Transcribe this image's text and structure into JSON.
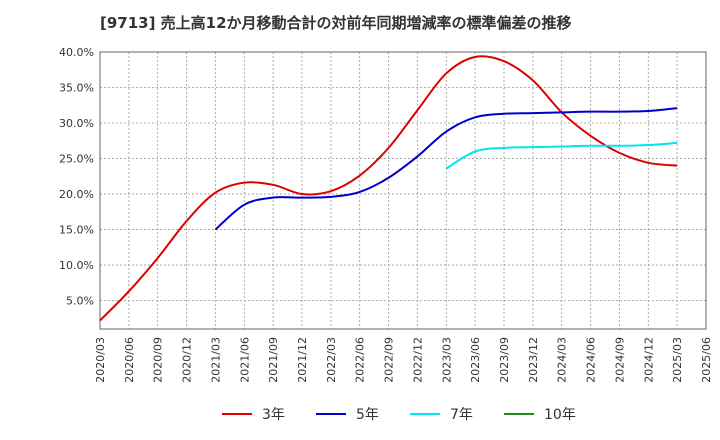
{
  "chart_data": {
    "type": "line",
    "title": "[9713]  売上高12か月移動合計の対前年同期増減率の標準偏差の推移",
    "xlabel": "",
    "ylabel": "",
    "x_ticks": [
      "2020/03",
      "2020/06",
      "2020/09",
      "2020/12",
      "2021/03",
      "2021/06",
      "2021/09",
      "2021/12",
      "2022/03",
      "2022/06",
      "2022/09",
      "2022/12",
      "2023/03",
      "2023/06",
      "2023/09",
      "2023/12",
      "2024/03",
      "2024/06",
      "2024/09",
      "2024/12",
      "2025/03",
      "2025/06"
    ],
    "y_ticks": [
      "5.0%",
      "10.0%",
      "15.0%",
      "20.0%",
      "25.0%",
      "30.0%",
      "35.0%",
      "40.0%"
    ],
    "ylim": [
      1.0,
      40.0
    ],
    "grid": true,
    "legend_position": "bottom",
    "series": [
      {
        "name": "3年",
        "color": "#dd0000",
        "x": [
          "2020/03",
          "2020/06",
          "2020/09",
          "2020/12",
          "2021/03",
          "2021/06",
          "2021/09",
          "2021/12",
          "2022/03",
          "2022/06",
          "2022/09",
          "2022/12",
          "2023/03",
          "2023/06",
          "2023/09",
          "2023/12",
          "2024/03",
          "2024/06",
          "2024/09",
          "2024/12",
          "2025/03"
        ],
        "values": [
          2.2,
          6.3,
          11.0,
          16.2,
          20.2,
          21.6,
          21.3,
          20.0,
          20.4,
          22.6,
          26.5,
          31.8,
          37.0,
          39.3,
          38.7,
          36.0,
          31.5,
          28.2,
          25.8,
          24.4,
          24.0
        ]
      },
      {
        "name": "5年",
        "color": "#0000cc",
        "x": [
          "2021/03",
          "2021/06",
          "2021/09",
          "2021/12",
          "2022/03",
          "2022/06",
          "2022/09",
          "2022/12",
          "2023/03",
          "2023/06",
          "2023/09",
          "2023/12",
          "2024/03",
          "2024/06",
          "2024/09",
          "2024/12",
          "2025/03"
        ],
        "values": [
          15.0,
          18.5,
          19.5,
          19.5,
          19.6,
          20.3,
          22.3,
          25.3,
          28.8,
          30.8,
          31.3,
          31.4,
          31.5,
          31.6,
          31.6,
          31.7,
          32.1
        ]
      },
      {
        "name": "7年",
        "color": "#00e5ee",
        "x": [
          "2023/03",
          "2023/06",
          "2023/09",
          "2023/12",
          "2024/03",
          "2024/06",
          "2024/09",
          "2024/12",
          "2025/03"
        ],
        "values": [
          23.6,
          26.0,
          26.5,
          26.6,
          26.7,
          26.8,
          26.8,
          26.9,
          27.2
        ]
      },
      {
        "name": "10年",
        "color": "#228b22",
        "x": [],
        "values": []
      }
    ]
  }
}
